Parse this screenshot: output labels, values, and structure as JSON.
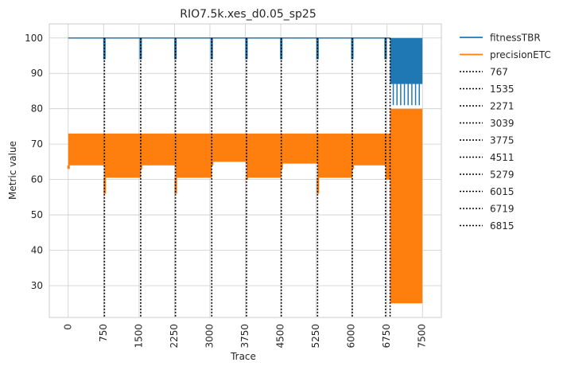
{
  "chart_data": {
    "type": "line",
    "title": "RIO7.5k.xes_d0.05_sp25",
    "xlabel": "Trace",
    "ylabel": "Metric value",
    "xlim": [
      -400,
      7900
    ],
    "ylim": [
      21,
      104
    ],
    "xticks": [
      0,
      750,
      1500,
      2250,
      3000,
      3750,
      4500,
      5250,
      6000,
      6750,
      7500
    ],
    "xtick_labels": [
      "0",
      "750",
      "1500",
      "2250",
      "3000",
      "3750",
      "4500",
      "5250",
      "6000",
      "6750",
      "7500"
    ],
    "yticks": [
      30,
      40,
      50,
      60,
      70,
      80,
      90,
      100
    ],
    "ytick_labels": [
      "30",
      "40",
      "50",
      "60",
      "70",
      "80",
      "90",
      "100"
    ],
    "grid": true,
    "legend_placement": "outside-right",
    "series": [
      {
        "name": "fitnessTBR",
        "color": "#1f77b4",
        "baseline": 100,
        "dips": [
          {
            "x": 767,
            "min": 94
          },
          {
            "x": 1535,
            "min": 94
          },
          {
            "x": 2271,
            "min": 94
          },
          {
            "x": 3039,
            "min": 94
          },
          {
            "x": 3775,
            "min": 94
          },
          {
            "x": 4511,
            "min": 94
          },
          {
            "x": 5279,
            "min": 94
          },
          {
            "x": 6015,
            "min": 94
          },
          {
            "x": 6719,
            "min": 94
          }
        ],
        "high_variance": {
          "x_start": 6815,
          "x_end": 7500,
          "low": 81,
          "high": 100,
          "band_low": 87
        }
      },
      {
        "name": "precisionETC",
        "color": "#ff7f0e",
        "band_high": 73,
        "segments": [
          {
            "x_start": 0,
            "x_end": 767,
            "band_low": 64,
            "min": 63
          },
          {
            "x_start": 767,
            "x_end": 1535,
            "band_low": 60.5,
            "min": 56
          },
          {
            "x_start": 1535,
            "x_end": 2271,
            "band_low": 64,
            "min": 63
          },
          {
            "x_start": 2271,
            "x_end": 3039,
            "band_low": 60.5,
            "min": 56
          },
          {
            "x_start": 3039,
            "x_end": 3775,
            "band_low": 65,
            "min": 64
          },
          {
            "x_start": 3775,
            "x_end": 4511,
            "band_low": 60.5,
            "min": 60
          },
          {
            "x_start": 4511,
            "x_end": 5279,
            "band_low": 64.5,
            "min": 63
          },
          {
            "x_start": 5279,
            "x_end": 6015,
            "band_low": 60.5,
            "min": 56
          },
          {
            "x_start": 6015,
            "x_end": 6719,
            "band_low": 64,
            "min": 63
          },
          {
            "x_start": 6719,
            "x_end": 6815,
            "band_low": 60,
            "min": 60
          },
          {
            "x_start": 6815,
            "x_end": 7500,
            "band_low": 25,
            "band_high": 80,
            "min": 25
          }
        ]
      }
    ],
    "drift_lines": {
      "style": "dotted",
      "color": "#000000",
      "labels": [
        "767",
        "1535",
        "2271",
        "3039",
        "3775",
        "4511",
        "5279",
        "6015",
        "6719",
        "6815"
      ],
      "values": [
        767,
        1535,
        2271,
        3039,
        3775,
        4511,
        5279,
        6015,
        6719,
        6815
      ]
    }
  }
}
